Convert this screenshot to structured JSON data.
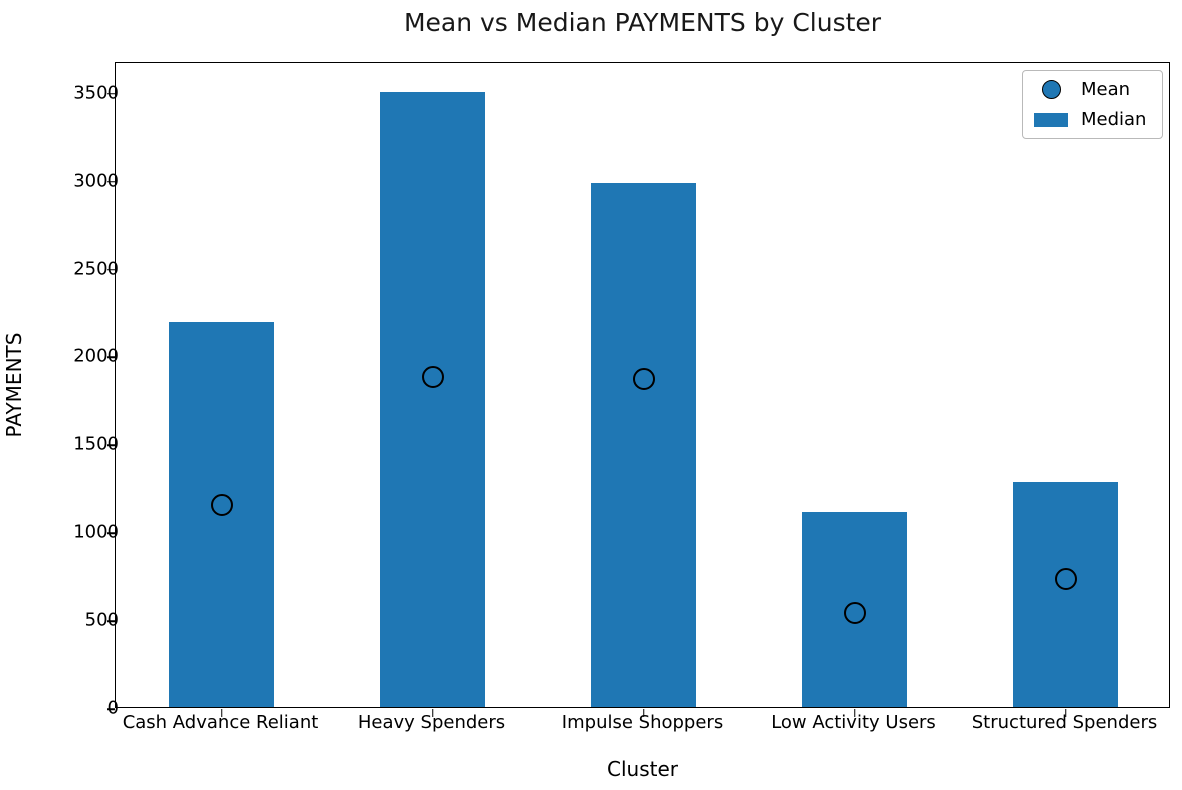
{
  "title": "Mean vs Median PAYMENTS by Cluster",
  "xlabel": "Cluster",
  "ylabel": "PAYMENTS",
  "colors": {
    "bar": "#1f77b4",
    "marker_fill": "#1f77b4",
    "marker_edge": "#000000"
  },
  "legend": {
    "items": [
      {
        "label": "Mean",
        "swatch": "circle-marker"
      },
      {
        "label": "Median",
        "swatch": "bar-swatch"
      }
    ]
  },
  "chart_data": {
    "type": "bar",
    "title": "Mean vs Median PAYMENTS by Cluster",
    "xlabel": "Cluster",
    "ylabel": "PAYMENTS",
    "categories": [
      "Cash Advance Reliant",
      "Heavy Spenders",
      "Impulse Shoppers",
      "Low Activity Users",
      "Structured Spenders"
    ],
    "series": [
      {
        "name": "Mean",
        "type": "scatter",
        "values": [
          1160,
          1890,
          1875,
          545,
          740
        ]
      },
      {
        "name": "Median",
        "type": "bar",
        "values": [
          2190,
          3500,
          2980,
          1110,
          1280
        ]
      }
    ],
    "ylim": [
      0,
      3675
    ],
    "yticks": [
      0,
      500,
      1000,
      1500,
      2000,
      2500,
      3000,
      3500
    ],
    "grid": false,
    "legend_position": "upper right"
  }
}
